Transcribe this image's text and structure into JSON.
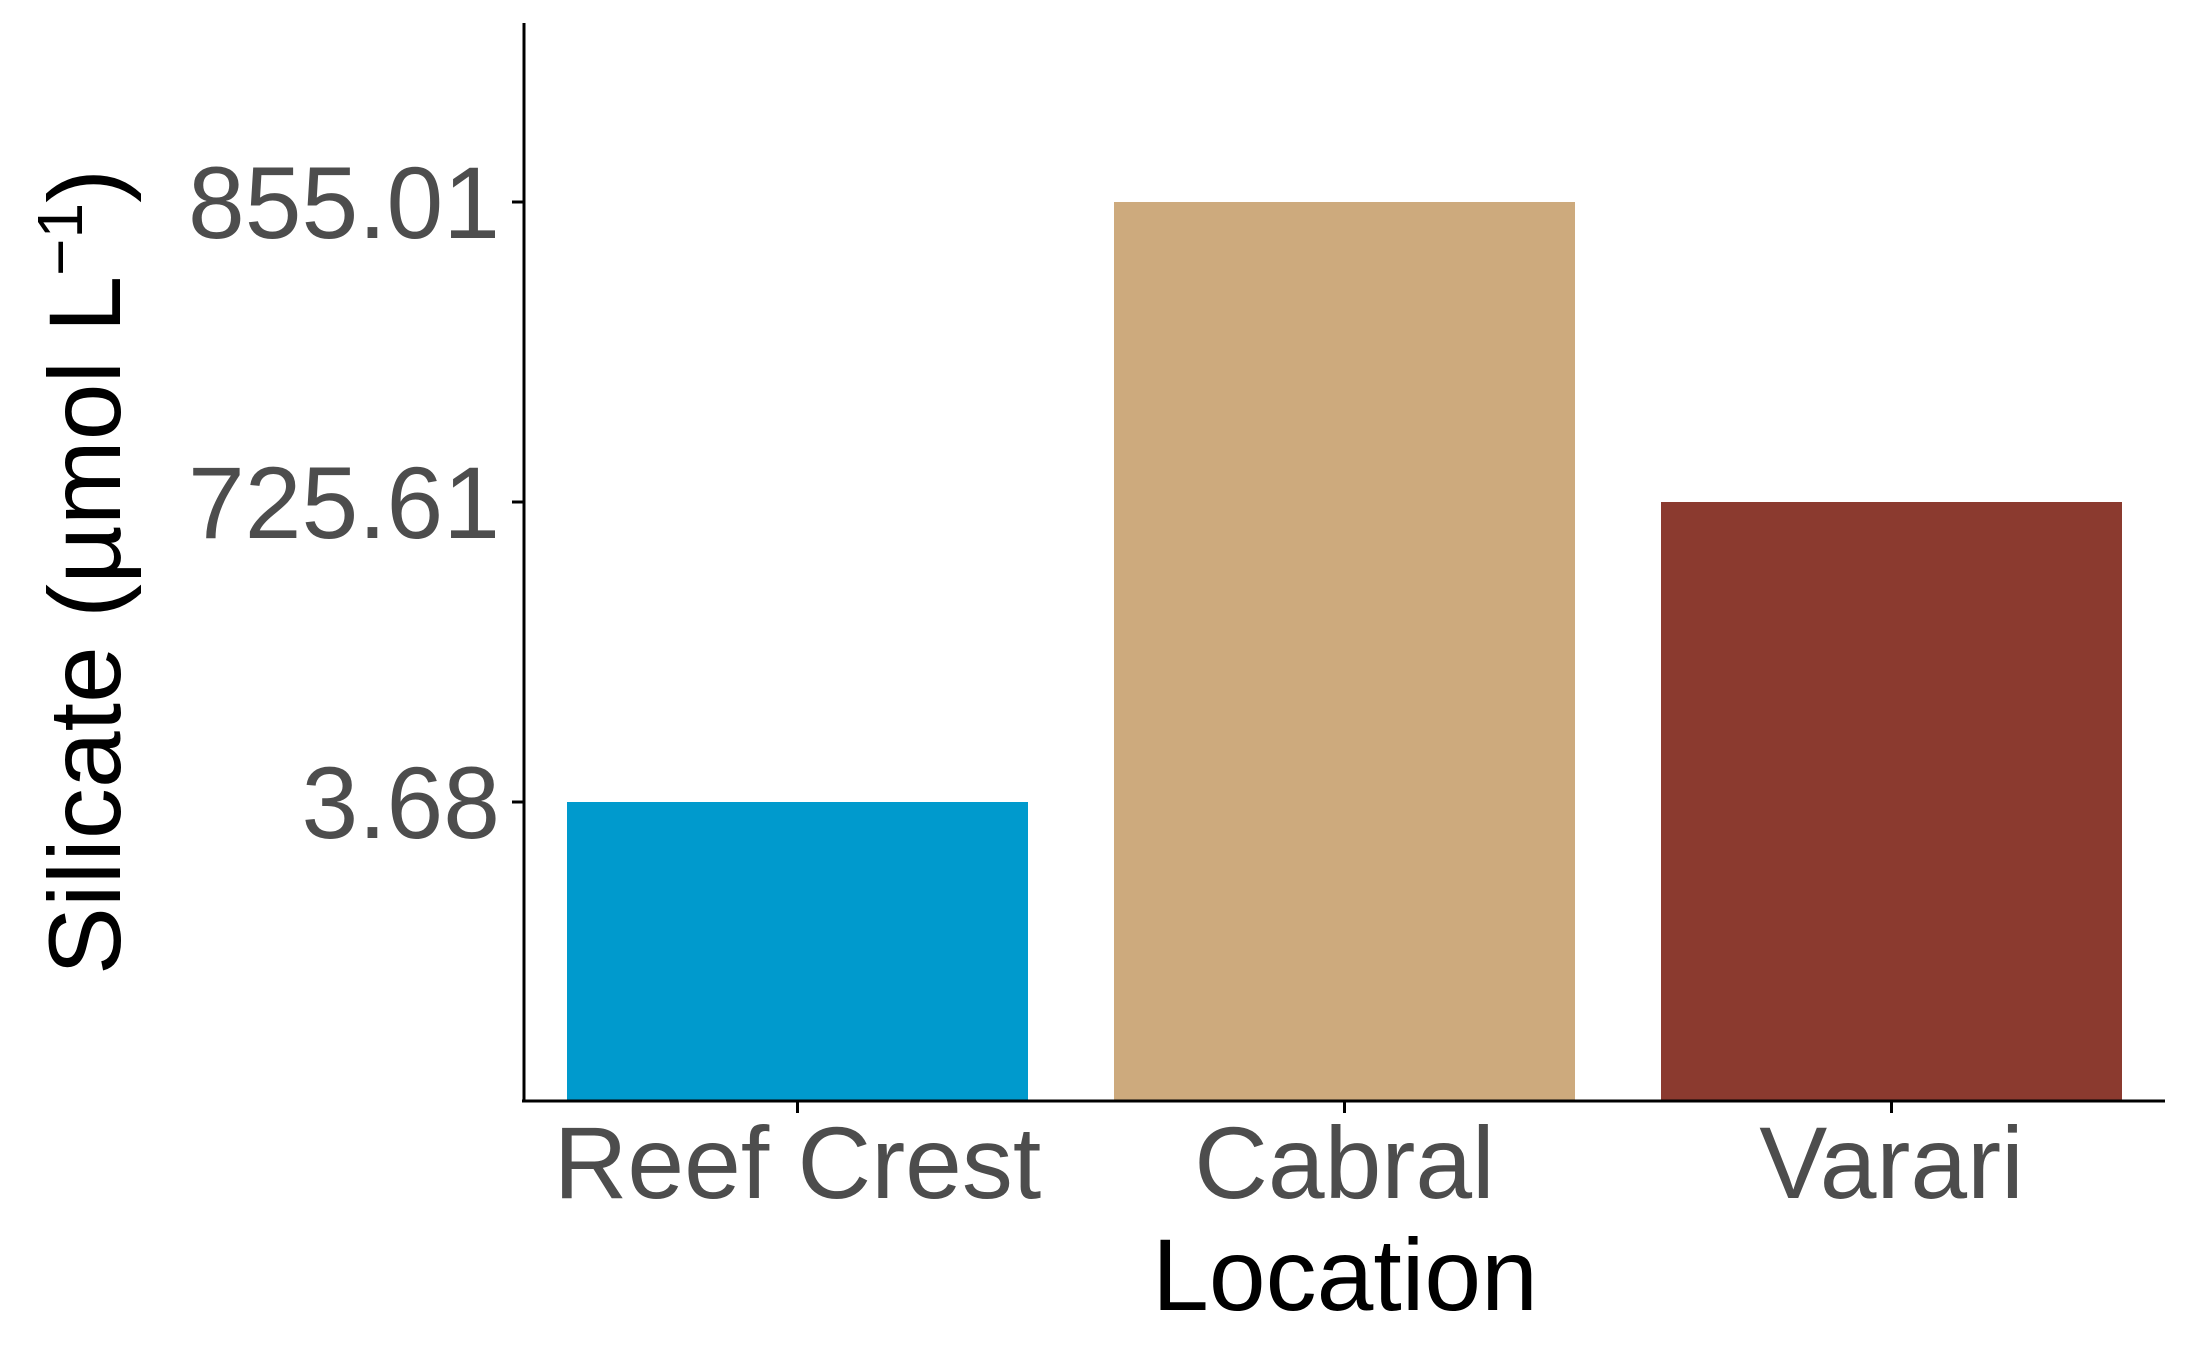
{
  "chart_data": {
    "type": "bar",
    "categories": [
      "Reef Crest",
      "Cabral",
      "Varari"
    ],
    "values": [
      3.68,
      855.01,
      725.61
    ],
    "y_ticks": [
      "3.68",
      "725.61",
      "855.01"
    ],
    "xlabel": "Location",
    "ylabel": {
      "main": "Silicate (",
      "unit": "µmol L",
      "superscript": "−1",
      "close": ")"
    },
    "colors": [
      "#009ACD",
      "#CDAA7D",
      "#8B3A2F"
    ],
    "axis_color": "#000000",
    "tick_label_color": "#4d4d4d",
    "grid": false,
    "legend": "none",
    "y_scale_note": "non-linear display: ticks evenly spaced by rank"
  }
}
